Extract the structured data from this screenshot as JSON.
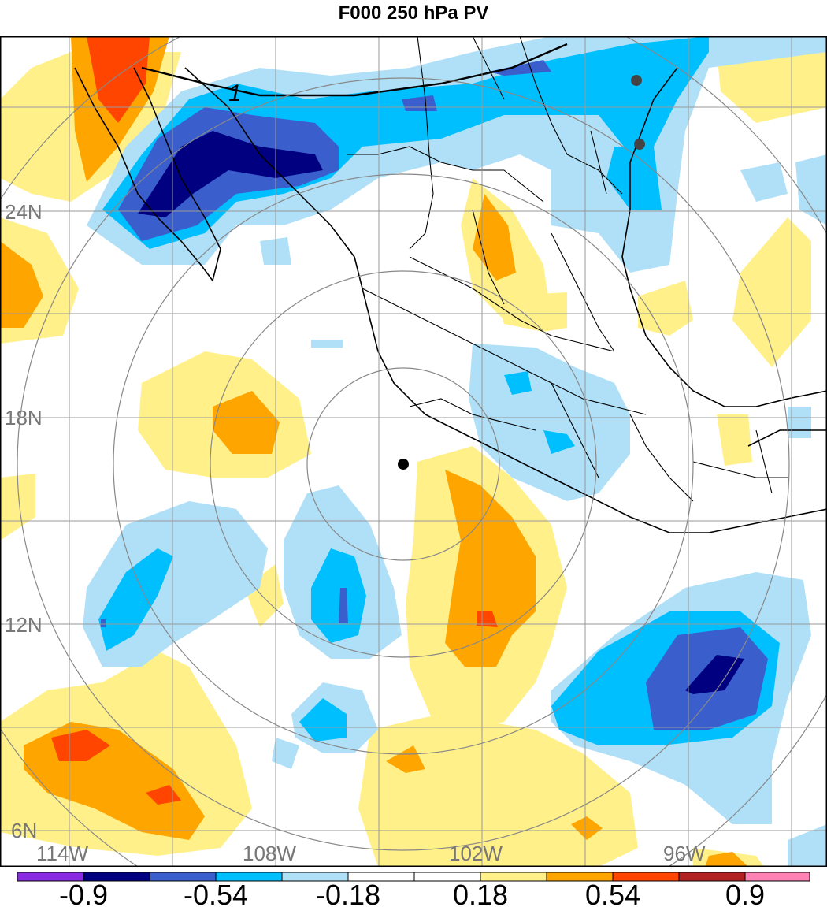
{
  "title": "F000 250 hPa PV",
  "map": {
    "lat_labels": [
      "24N",
      "18N",
      "12N",
      "6N"
    ],
    "lon_labels": [
      "114W",
      "108W",
      "102W",
      "96W"
    ],
    "contour_label": "1",
    "colors": {
      "neg_extreme": "#8a2be2",
      "neg_strong": "#000080",
      "neg_mid": "#3a5fcd",
      "neg_weak": "#00bfff",
      "neg_faint": "#b0e0f7",
      "pos_faint": "#fff08a",
      "pos_weak": "#ffa500",
      "pos_mid": "#ff4500",
      "pos_strong": "#b22222",
      "pos_extreme": "#ff82b4"
    }
  },
  "colorbar": {
    "labels": [
      "-0.9",
      "-0.54",
      "-0.18",
      "0.18",
      "0.54",
      "0.9"
    ],
    "colors": [
      "#8a2be2",
      "#000080",
      "#3a5fcd",
      "#00bfff",
      "#b0e0f7",
      "#ffffff",
      "#ffffff",
      "#fff08a",
      "#ffa500",
      "#ff4500",
      "#b22222",
      "#ff82b4"
    ]
  }
}
